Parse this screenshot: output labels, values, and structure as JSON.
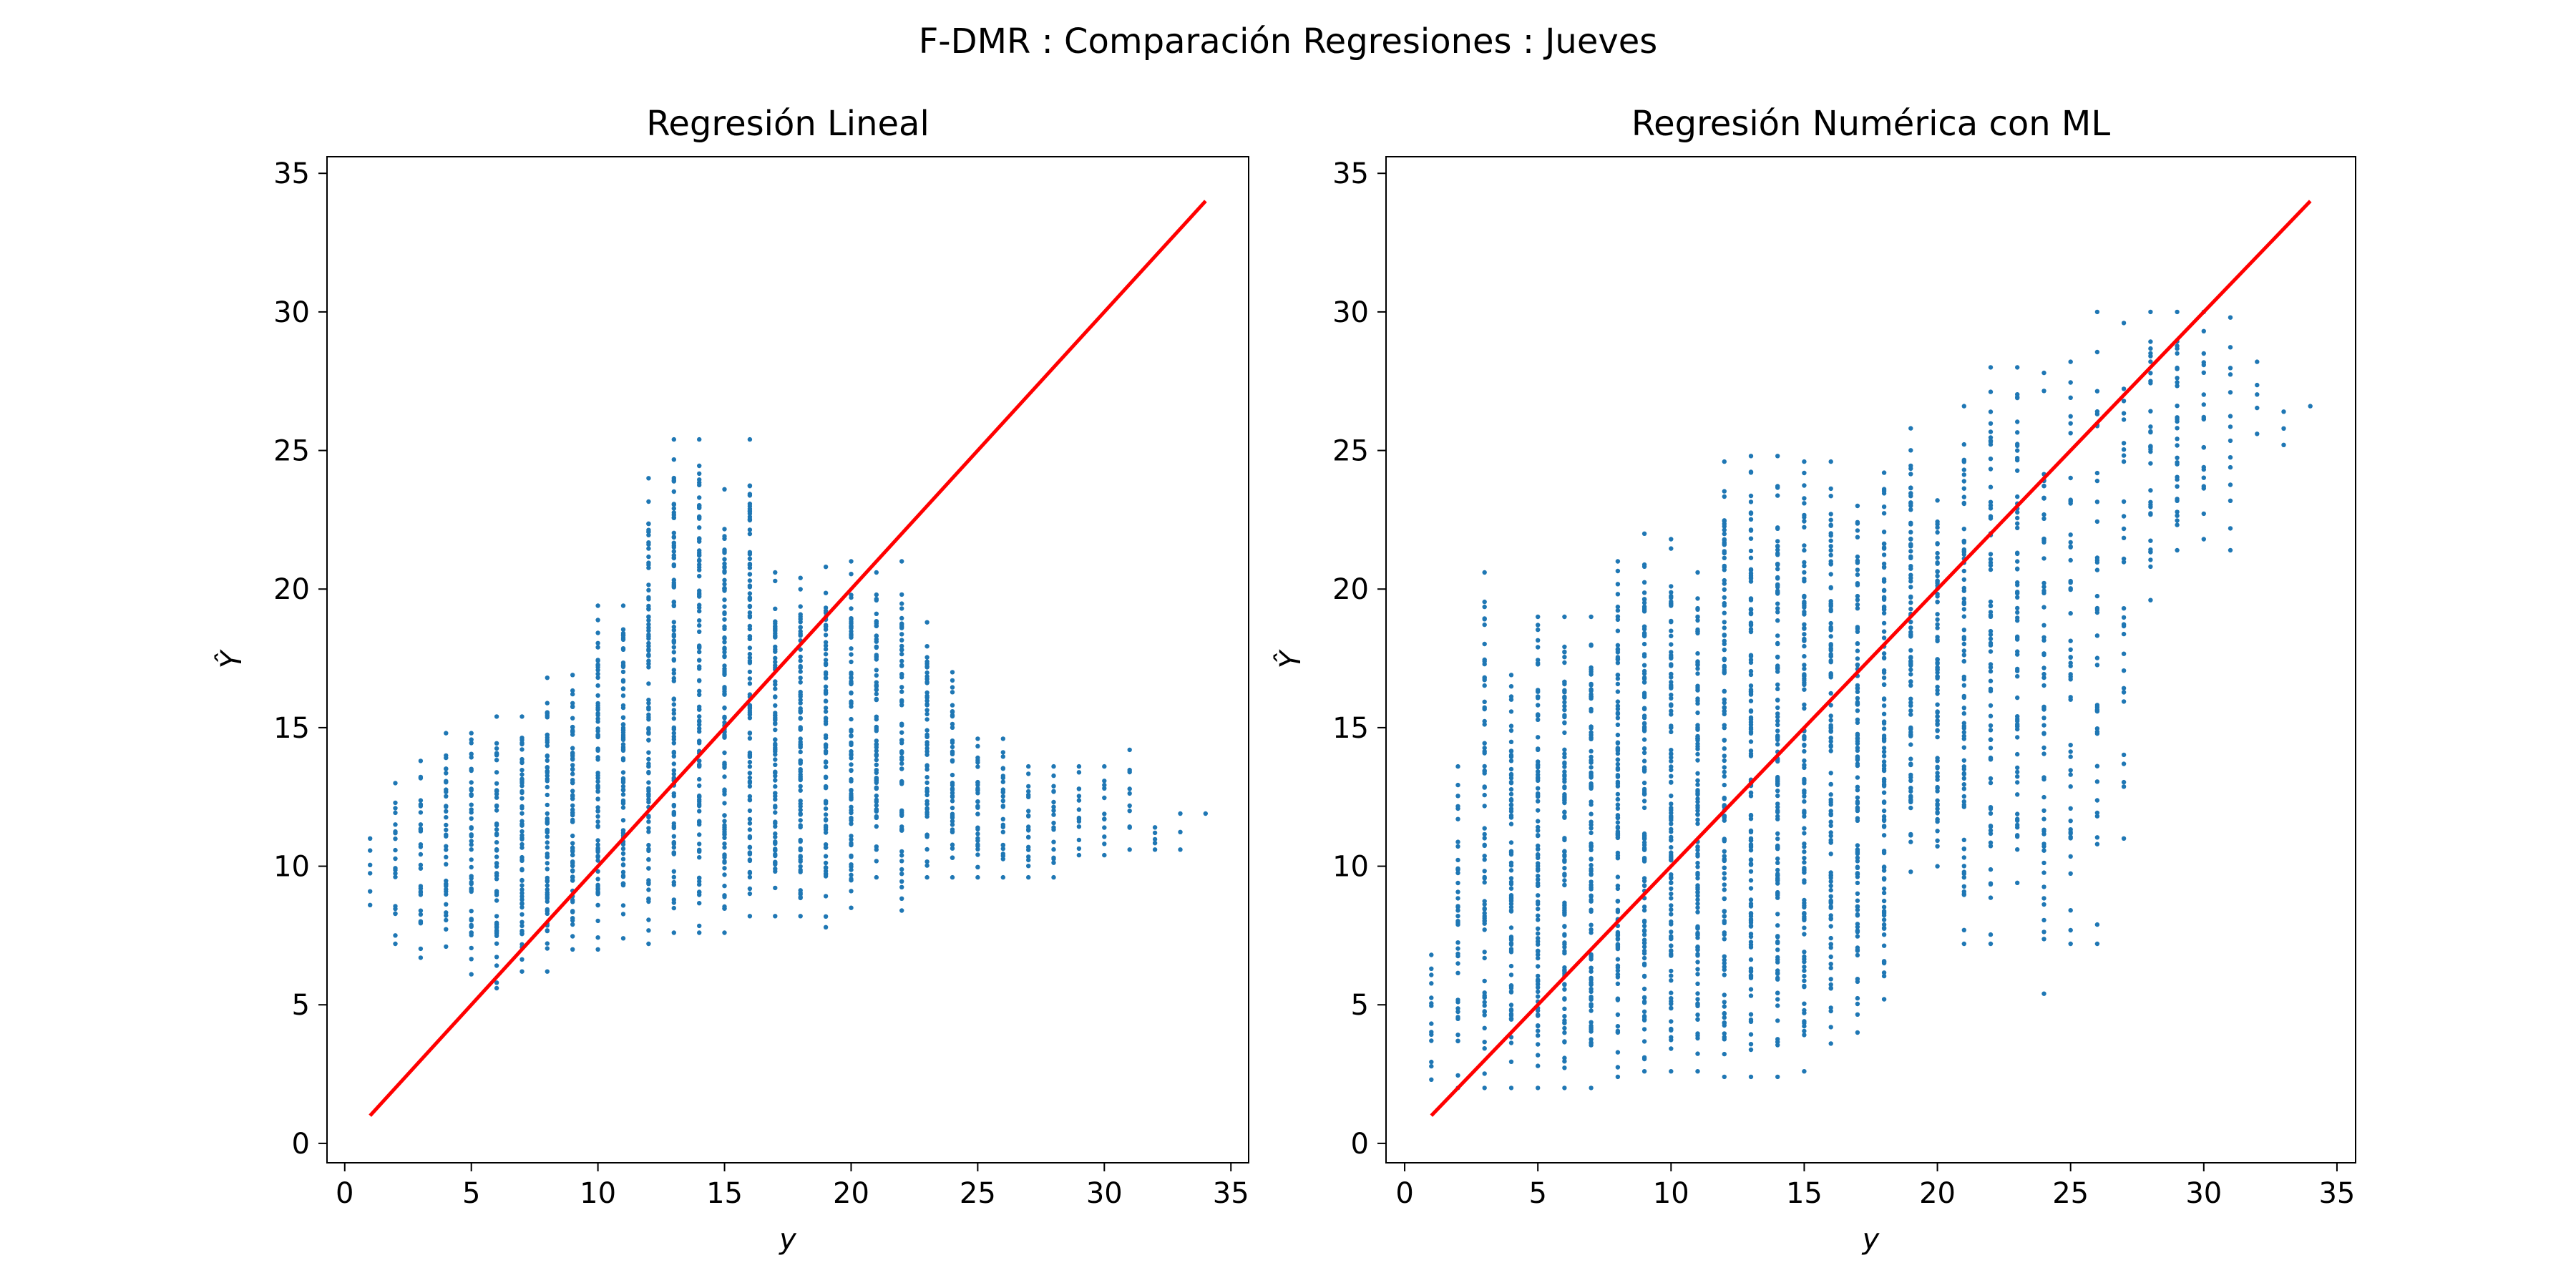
{
  "figure": {
    "suptitle": "F-DMR : Comparación Regresiones : Jueves"
  },
  "colors": {
    "points": "#1f77b4",
    "identity_line": "#ff0000",
    "axes": "#000000",
    "background": "#ffffff"
  },
  "chart_data": [
    {
      "type": "scatter",
      "title": "Regresión Lineal",
      "xlabel": "y",
      "ylabel": "Ŷ",
      "xlim": [
        -0.7,
        35.7
      ],
      "ylim": [
        -0.7,
        35.6
      ],
      "xticks": [
        0,
        5,
        10,
        15,
        20,
        25,
        30,
        35
      ],
      "yticks": [
        0,
        5,
        10,
        15,
        20,
        25,
        30,
        35
      ],
      "xtick_labels": [
        "0",
        "5",
        "10",
        "15",
        "20",
        "25",
        "30",
        "35"
      ],
      "ytick_labels": [
        "0",
        "5",
        "10",
        "15",
        "20",
        "25",
        "30",
        "35"
      ],
      "grid": false,
      "identity_line": {
        "x": [
          1,
          34
        ],
        "y": [
          1,
          34
        ]
      },
      "point_columns": [
        {
          "x": 1,
          "y_min": 8.6,
          "y_max": 11.0,
          "n": 6
        },
        {
          "x": 2,
          "y_min": 7.2,
          "y_max": 13.0,
          "n": 20
        },
        {
          "x": 3,
          "y_min": 6.7,
          "y_max": 13.8,
          "n": 28
        },
        {
          "x": 4,
          "y_min": 7.1,
          "y_max": 14.8,
          "n": 36
        },
        {
          "x": 5,
          "y_min": 6.1,
          "y_max": 14.8,
          "n": 45
        },
        {
          "x": 6,
          "y_min": 5.6,
          "y_max": 15.4,
          "n": 55
        },
        {
          "x": 7,
          "y_min": 6.2,
          "y_max": 15.4,
          "n": 60
        },
        {
          "x": 8,
          "y_min": 6.2,
          "y_max": 16.8,
          "n": 66
        },
        {
          "x": 9,
          "y_min": 7.0,
          "y_max": 16.9,
          "n": 70
        },
        {
          "x": 10,
          "y_min": 7.0,
          "y_max": 19.4,
          "n": 78
        },
        {
          "x": 11,
          "y_min": 7.4,
          "y_max": 19.4,
          "n": 82
        },
        {
          "x": 12,
          "y_min": 7.2,
          "y_max": 24.0,
          "n": 95
        },
        {
          "x": 13,
          "y_min": 7.6,
          "y_max": 25.4,
          "n": 102
        },
        {
          "x": 14,
          "y_min": 7.6,
          "y_max": 25.4,
          "n": 102
        },
        {
          "x": 15,
          "y_min": 7.6,
          "y_max": 23.6,
          "n": 96
        },
        {
          "x": 16,
          "y_min": 8.2,
          "y_max": 25.4,
          "n": 98
        },
        {
          "x": 17,
          "y_min": 8.2,
          "y_max": 20.6,
          "n": 82
        },
        {
          "x": 18,
          "y_min": 8.2,
          "y_max": 20.4,
          "n": 80
        },
        {
          "x": 19,
          "y_min": 7.8,
          "y_max": 20.8,
          "n": 80
        },
        {
          "x": 20,
          "y_min": 8.5,
          "y_max": 21.0,
          "n": 78
        },
        {
          "x": 21,
          "y_min": 9.6,
          "y_max": 20.6,
          "n": 70
        },
        {
          "x": 22,
          "y_min": 8.4,
          "y_max": 21.0,
          "n": 62
        },
        {
          "x": 23,
          "y_min": 9.6,
          "y_max": 18.8,
          "n": 55
        },
        {
          "x": 24,
          "y_min": 9.6,
          "y_max": 17.0,
          "n": 42
        },
        {
          "x": 25,
          "y_min": 9.6,
          "y_max": 14.6,
          "n": 32
        },
        {
          "x": 26,
          "y_min": 9.6,
          "y_max": 14.6,
          "n": 26
        },
        {
          "x": 27,
          "y_min": 9.6,
          "y_max": 13.6,
          "n": 20
        },
        {
          "x": 28,
          "y_min": 9.6,
          "y_max": 13.6,
          "n": 18
        },
        {
          "x": 29,
          "y_min": 10.4,
          "y_max": 13.6,
          "n": 14
        },
        {
          "x": 30,
          "y_min": 10.4,
          "y_max": 13.6,
          "n": 12
        },
        {
          "x": 31,
          "y_min": 10.6,
          "y_max": 14.2,
          "n": 10
        },
        {
          "x": 32,
          "y_min": 10.6,
          "y_max": 11.4,
          "n": 5
        },
        {
          "x": 33,
          "y_min": 10.6,
          "y_max": 11.9,
          "n": 3
        },
        {
          "x": 34,
          "y_min": 11.9,
          "y_max": 11.9,
          "n": 1
        }
      ]
    },
    {
      "type": "scatter",
      "title": "Regresión Numérica con ML",
      "xlabel": "y",
      "ylabel": "Ŷ",
      "xlim": [
        -0.7,
        35.7
      ],
      "ylim": [
        -0.7,
        35.6
      ],
      "xticks": [
        0,
        5,
        10,
        15,
        20,
        25,
        30,
        35
      ],
      "yticks": [
        0,
        5,
        10,
        15,
        20,
        25,
        30,
        35
      ],
      "xtick_labels": [
        "0",
        "5",
        "10",
        "15",
        "20",
        "25",
        "30",
        "35"
      ],
      "ytick_labels": [
        "0",
        "5",
        "10",
        "15",
        "20",
        "25",
        "30",
        "35"
      ],
      "grid": false,
      "identity_line": {
        "x": [
          1,
          34
        ],
        "y": [
          1,
          34
        ]
      },
      "point_columns": [
        {
          "x": 1,
          "y_min": 2.3,
          "y_max": 6.8,
          "n": 14
        },
        {
          "x": 2,
          "y_min": 2.0,
          "y_max": 13.6,
          "n": 40
        },
        {
          "x": 3,
          "y_min": 2.0,
          "y_max": 20.6,
          "n": 70
        },
        {
          "x": 4,
          "y_min": 2.0,
          "y_max": 16.9,
          "n": 80
        },
        {
          "x": 5,
          "y_min": 2.0,
          "y_max": 19.0,
          "n": 95
        },
        {
          "x": 6,
          "y_min": 2.0,
          "y_max": 19.0,
          "n": 105
        },
        {
          "x": 7,
          "y_min": 2.0,
          "y_max": 19.0,
          "n": 105
        },
        {
          "x": 8,
          "y_min": 2.4,
          "y_max": 21.0,
          "n": 110
        },
        {
          "x": 9,
          "y_min": 2.6,
          "y_max": 22.0,
          "n": 115
        },
        {
          "x": 10,
          "y_min": 2.6,
          "y_max": 21.8,
          "n": 115
        },
        {
          "x": 11,
          "y_min": 2.6,
          "y_max": 20.6,
          "n": 115
        },
        {
          "x": 12,
          "y_min": 2.4,
          "y_max": 24.6,
          "n": 120
        },
        {
          "x": 13,
          "y_min": 2.4,
          "y_max": 24.8,
          "n": 120
        },
        {
          "x": 14,
          "y_min": 2.4,
          "y_max": 24.8,
          "n": 120
        },
        {
          "x": 15,
          "y_min": 2.6,
          "y_max": 24.6,
          "n": 115
        },
        {
          "x": 16,
          "y_min": 3.6,
          "y_max": 24.6,
          "n": 110
        },
        {
          "x": 17,
          "y_min": 4.0,
          "y_max": 23.0,
          "n": 105
        },
        {
          "x": 18,
          "y_min": 5.2,
          "y_max": 24.2,
          "n": 100
        },
        {
          "x": 19,
          "y_min": 9.8,
          "y_max": 25.8,
          "n": 90
        },
        {
          "x": 20,
          "y_min": 10.0,
          "y_max": 23.2,
          "n": 85
        },
        {
          "x": 21,
          "y_min": 7.2,
          "y_max": 26.6,
          "n": 80
        },
        {
          "x": 22,
          "y_min": 7.2,
          "y_max": 28.0,
          "n": 70
        },
        {
          "x": 23,
          "y_min": 9.4,
          "y_max": 28.0,
          "n": 65
        },
        {
          "x": 24,
          "y_min": 5.4,
          "y_max": 27.8,
          "n": 60
        },
        {
          "x": 25,
          "y_min": 7.2,
          "y_max": 28.2,
          "n": 50
        },
        {
          "x": 26,
          "y_min": 7.2,
          "y_max": 30.0,
          "n": 40
        },
        {
          "x": 27,
          "y_min": 11.0,
          "y_max": 29.6,
          "n": 30
        },
        {
          "x": 28,
          "y_min": 19.6,
          "y_max": 30.0,
          "n": 32
        },
        {
          "x": 29,
          "y_min": 21.4,
          "y_max": 30.0,
          "n": 30
        },
        {
          "x": 30,
          "y_min": 21.8,
          "y_max": 30.0,
          "n": 20
        },
        {
          "x": 31,
          "y_min": 21.4,
          "y_max": 29.8,
          "n": 14
        },
        {
          "x": 32,
          "y_min": 25.6,
          "y_max": 28.2,
          "n": 5
        },
        {
          "x": 33,
          "y_min": 25.2,
          "y_max": 26.4,
          "n": 3
        },
        {
          "x": 34,
          "y_min": 26.6,
          "y_max": 26.6,
          "n": 1
        }
      ]
    }
  ]
}
